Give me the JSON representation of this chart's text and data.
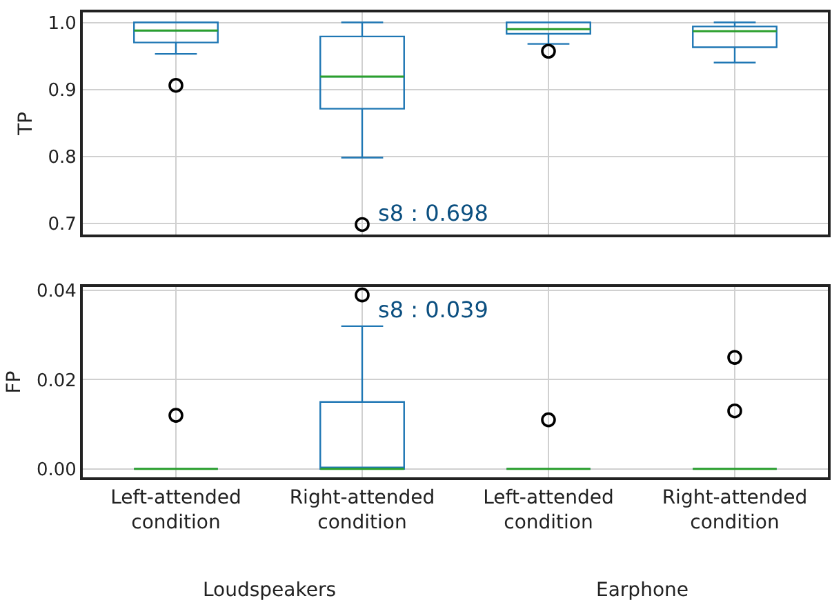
{
  "chart_data": [
    {
      "type": "box",
      "ylabel": "TP",
      "categories": [
        null,
        null,
        null,
        null
      ],
      "boxes": [
        {
          "low": 0.953,
          "q1": 0.97,
          "median": 0.988,
          "q3": 1.0,
          "high": 1.0,
          "outliers": [
            0.906
          ]
        },
        {
          "low": 0.798,
          "q1": 0.871,
          "median": 0.919,
          "q3": 0.979,
          "high": 1.0,
          "outliers": [
            0.698
          ]
        },
        {
          "low": 0.968,
          "q1": 0.983,
          "median": 0.99,
          "q3": 1.0,
          "high": 1.0,
          "outliers": [
            0.957
          ]
        },
        {
          "low": 0.94,
          "q1": 0.963,
          "median": 0.987,
          "q3": 0.994,
          "high": 1.0
        }
      ],
      "color": "#1f77b4",
      "ylim": [
        0.683,
        1.015
      ],
      "yticks": [
        0.7,
        0.8,
        0.9,
        {
          "value": 1.0,
          "label": "1.0"
        }
      ],
      "grid": true,
      "annotations": [
        "s8 : 0.698"
      ]
    },
    {
      "type": "box",
      "ylabel": "FP",
      "categories": [
        "Left-attended\ncondition",
        "Right-attended\ncondition",
        "Left-attended\ncondition",
        "Right-attended\ncondition"
      ],
      "boxes": [
        {
          "low": 0,
          "q1": 0,
          "median": 0,
          "q3": 0,
          "high": 0,
          "outliers": [
            0.012
          ]
        },
        {
          "low": 0,
          "q1": 0,
          "median": 0,
          "q3": 0.015,
          "high": 0.032,
          "outliers": [
            0.039
          ]
        },
        {
          "low": 0,
          "q1": 0,
          "median": 0,
          "q3": 0,
          "high": 0,
          "outliers": [
            0.011
          ]
        },
        {
          "low": 0,
          "q1": 0,
          "median": 0,
          "q3": 0,
          "high": 0,
          "outliers": [
            0.025,
            0.013
          ]
        }
      ],
      "color": "#1f77b4",
      "ylim": [
        -0.0019,
        0.0408
      ],
      "yticks": [
        {
          "value": 0,
          "label": "0.00"
        },
        {
          "value": 0.02,
          "label": "0.02"
        },
        {
          "value": 0.04,
          "label": "0.04"
        }
      ],
      "grid": true,
      "annotations": [
        "s8 : 0.039",
        "Loudspeakers",
        "Earphone"
      ]
    }
  ]
}
